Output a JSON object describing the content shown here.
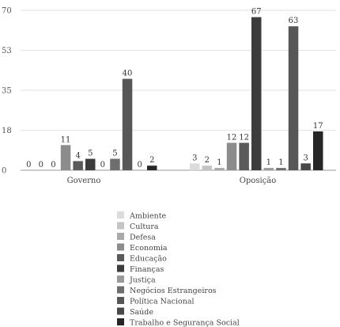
{
  "chart_data": {
    "type": "bar",
    "categories": [
      "Governo",
      "Oposição"
    ],
    "ylim": [
      0,
      70
    ],
    "yticks": [
      "0",
      "18",
      "35",
      "53",
      "70"
    ],
    "ytick_values": [
      0,
      17.5,
      35,
      52.5,
      70
    ],
    "grid": true,
    "legend_position": "bottom",
    "series": [
      {
        "name": "Ambiente",
        "values": [
          0,
          3
        ],
        "color": "#dcdcdc"
      },
      {
        "name": "Cultura",
        "values": [
          0,
          2
        ],
        "color": "#c4c4c4"
      },
      {
        "name": "Defesa",
        "values": [
          0,
          1
        ],
        "color": "#a9a9a9"
      },
      {
        "name": "Economia",
        "values": [
          11,
          12
        ],
        "color": "#8c8c8c"
      },
      {
        "name": "Educação",
        "values": [
          4,
          12
        ],
        "color": "#5a5a5a"
      },
      {
        "name": "Finanças",
        "values": [
          5,
          67
        ],
        "color": "#3c3c3c"
      },
      {
        "name": "Justiça",
        "values": [
          0,
          1
        ],
        "color": "#9a9a9a"
      },
      {
        "name": "Negócios Estrangeiros",
        "values": [
          5,
          1
        ],
        "color": "#6e6e6e"
      },
      {
        "name": "Política Nacional",
        "values": [
          40,
          63
        ],
        "color": "#575757"
      },
      {
        "name": "Saúde",
        "values": [
          0,
          3
        ],
        "color": "#484848"
      },
      {
        "name": "Trabalho e Segurança Social",
        "values": [
          2,
          17
        ],
        "color": "#262626"
      }
    ]
  }
}
